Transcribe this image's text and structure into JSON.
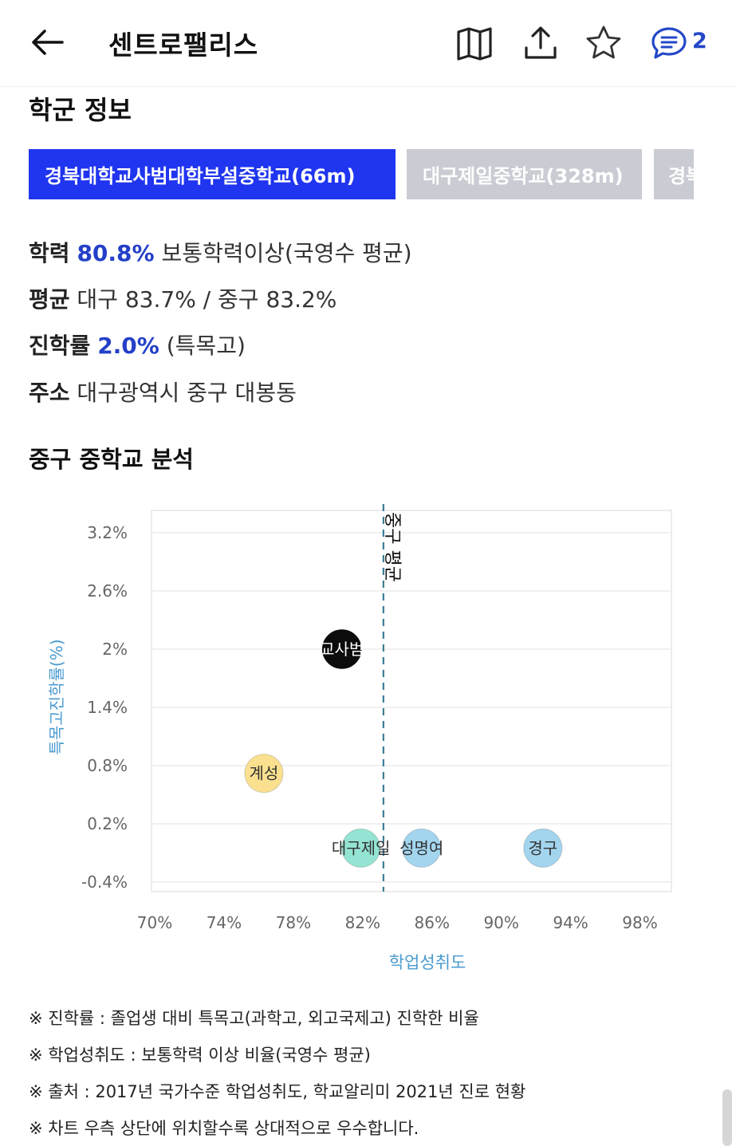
{
  "header": {
    "title": "센트로팰리스",
    "comment_count": "2",
    "icons": [
      "back-arrow-icon",
      "map-icon",
      "share-icon",
      "star-icon",
      "comment-icon"
    ]
  },
  "school_info": {
    "title": "학군 정보",
    "tabs": [
      {
        "label": "경북대학교사범대학부설중학교(66m)",
        "active": true
      },
      {
        "label": "대구제일중학교(328m)",
        "active": false
      },
      {
        "label": "경북",
        "active": false
      }
    ],
    "rows": [
      {
        "key": "학력",
        "value": "80.8%",
        "rest": " 보통학력이상(국영수 평균)"
      },
      {
        "key": "평균",
        "rest": " 대구 83.7% / 중구 83.2%"
      },
      {
        "key": "진학률",
        "value": "2.0%",
        "rest": " (특목고)"
      },
      {
        "key": "주소",
        "rest": " 대구광역시 중구 대봉동"
      }
    ]
  },
  "analysis": {
    "title": "중구 중학교 분석"
  },
  "chart_data": {
    "type": "scatter",
    "xlabel": "학업성취도",
    "ylabel": "특목고진학률(%)",
    "xlim": [
      70,
      100
    ],
    "ylim": [
      -0.4,
      3.2
    ],
    "x_ticks": [
      70,
      74,
      78,
      82,
      86,
      90,
      94,
      98
    ],
    "x_tick_labels": [
      "70%",
      "74%",
      "78%",
      "82%",
      "86%",
      "90%",
      "94%",
      "98%"
    ],
    "y_ticks": [
      3.2,
      2.6,
      2.0,
      1.4,
      0.8,
      0.2,
      -0.4
    ],
    "y_tick_labels": [
      "3.2%",
      "2.6%",
      "2%",
      "1.4%",
      "0.8%",
      "0.2%",
      "-0.4%"
    ],
    "reference_line": {
      "x": 83.2,
      "label": "중구 평균"
    },
    "points": [
      {
        "label": "교사범",
        "x": 80.8,
        "y": 2.0,
        "color": "#000000",
        "text_color": "#ffffff"
      },
      {
        "label": "계성",
        "x": 76.3,
        "y": 0.72,
        "color": "#fbe08a",
        "text_color": "#333333"
      },
      {
        "label": "대구제일",
        "x": 81.9,
        "y": -0.05,
        "color": "#8fe3d2",
        "text_color": "#333333"
      },
      {
        "label": "성명여",
        "x": 85.4,
        "y": -0.05,
        "color": "#9fd3ef",
        "text_color": "#333333"
      },
      {
        "label": "경구",
        "x": 92.4,
        "y": -0.05,
        "color": "#9fd3ef",
        "text_color": "#333333"
      }
    ],
    "grid": true,
    "axis_label_color": "#4a9bd0"
  },
  "notes": [
    "※ 진학률 : 졸업생 대비 특목고(과학고, 외고국제고) 진학한 비율",
    "※ 학업성취도 : 보통학력 이상 비율(국영수 평균)",
    "※ 출처 : 2017년 국가수준 학업성취도, 학교알리미 2021년 진로 현황",
    "※ 차트 우측 상단에 위치할수록 상대적으로 우수합니다."
  ]
}
